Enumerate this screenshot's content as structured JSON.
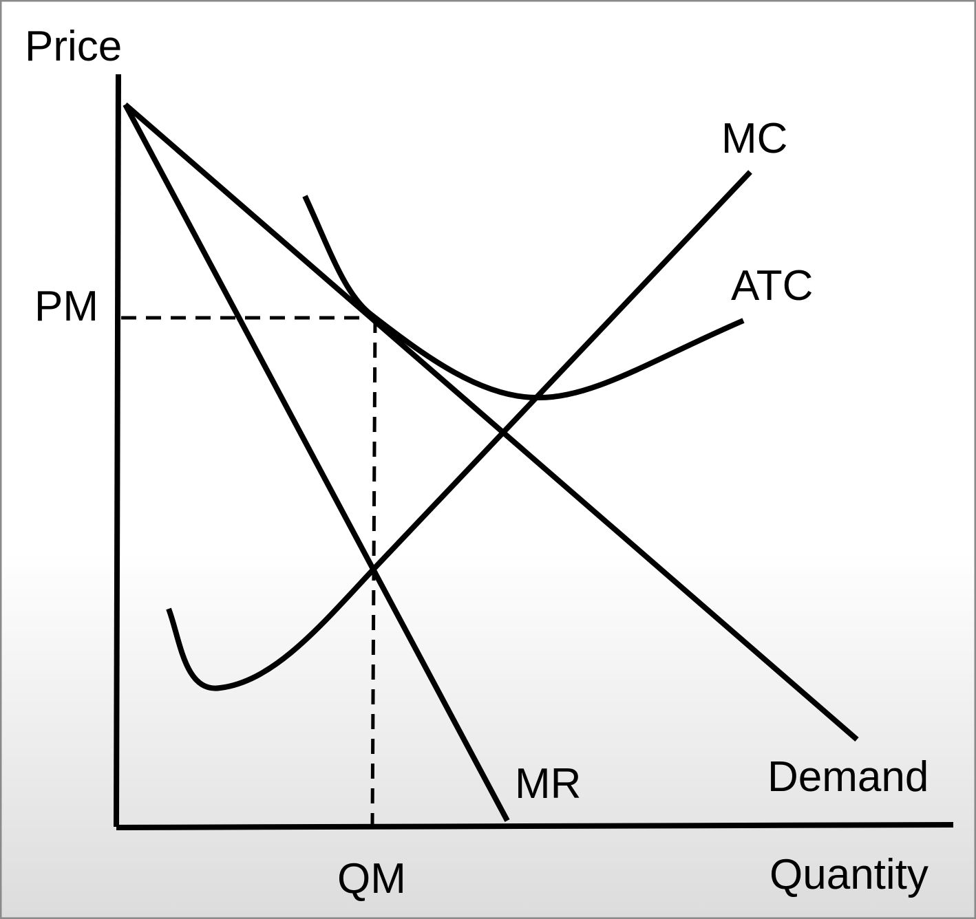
{
  "axes": {
    "y_label": "Price",
    "x_label": "Quantity"
  },
  "curves": {
    "mc": "MC",
    "atc": "ATC",
    "mr": "MR",
    "demand": "Demand"
  },
  "markers": {
    "price": "PM",
    "quantity": "QM"
  }
}
